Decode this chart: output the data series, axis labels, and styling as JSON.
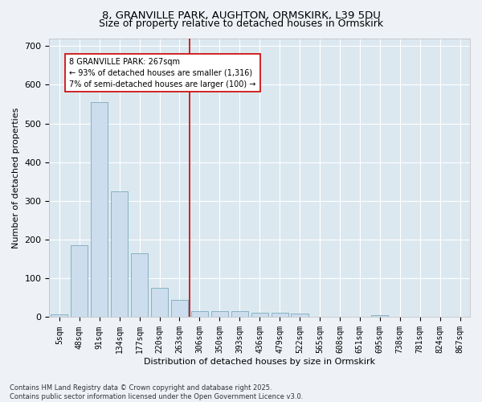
{
  "title_line1": "8, GRANVILLE PARK, AUGHTON, ORMSKIRK, L39 5DU",
  "title_line2": "Size of property relative to detached houses in Ormskirk",
  "xlabel": "Distribution of detached houses by size in Ormskirk",
  "ylabel": "Number of detached properties",
  "footnote1": "Contains HM Land Registry data © Crown copyright and database right 2025.",
  "footnote2": "Contains public sector information licensed under the Open Government Licence v3.0.",
  "bar_labels": [
    "5sqm",
    "48sqm",
    "91sqm",
    "134sqm",
    "177sqm",
    "220sqm",
    "263sqm",
    "306sqm",
    "350sqm",
    "393sqm",
    "436sqm",
    "479sqm",
    "522sqm",
    "565sqm",
    "608sqm",
    "651sqm",
    "695sqm",
    "738sqm",
    "781sqm",
    "824sqm",
    "867sqm"
  ],
  "bar_values": [
    8,
    185,
    555,
    325,
    165,
    75,
    45,
    15,
    15,
    15,
    12,
    12,
    10,
    0,
    0,
    0,
    5,
    0,
    0,
    0,
    0
  ],
  "bar_color": "#ccdded",
  "bar_edge_color": "#7aaabb",
  "vline_x_index": 6,
  "vline_color": "#cc0000",
  "annotation_text": "8 GRANVILLE PARK: 267sqm\n← 93% of detached houses are smaller (1,316)\n7% of semi-detached houses are larger (100) →",
  "annotation_box_color": "#ffffff",
  "annotation_box_edge": "#cc0000",
  "ylim": [
    0,
    720
  ],
  "yticks": [
    0,
    100,
    200,
    300,
    400,
    500,
    600,
    700
  ],
  "fig_bg_color": "#eef2f7",
  "plot_bg_color": "#dce8f0",
  "grid_color": "#ffffff",
  "title1_fontsize": 9.5,
  "title2_fontsize": 9,
  "axis_label_fontsize": 8,
  "tick_fontsize": 7,
  "footnote_fontsize": 6
}
